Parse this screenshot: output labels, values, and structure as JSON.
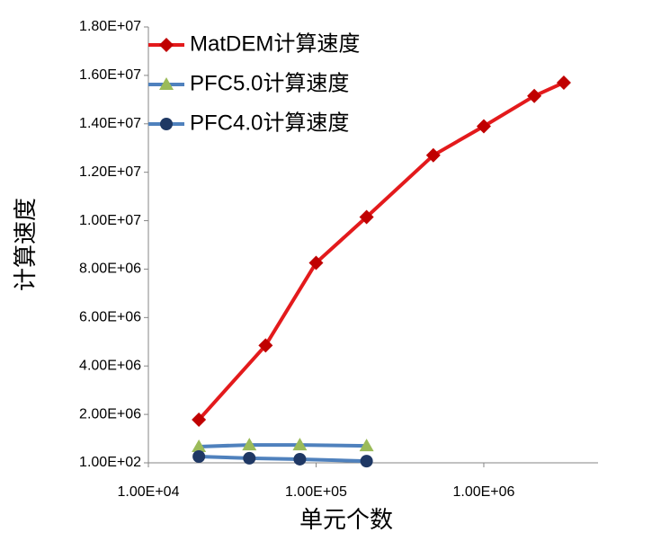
{
  "chart_data": {
    "type": "line",
    "x_label": "单元个数",
    "y_label": "计算速度",
    "x_log": true,
    "xlim": [
      10000,
      4800000
    ],
    "xticks": [
      {
        "value": 10000,
        "label": "1.00E+04"
      },
      {
        "value": 100000,
        "label": "1.00E+05"
      },
      {
        "value": 1000000,
        "label": "1.00E+06"
      }
    ],
    "ylim": [
      100,
      18000000
    ],
    "yticks": [
      {
        "value": 100,
        "label": "1.00E+02"
      },
      {
        "value": 2000000,
        "label": "2.00E+06"
      },
      {
        "value": 4000000,
        "label": "4.00E+06"
      },
      {
        "value": 6000000,
        "label": "6.00E+06"
      },
      {
        "value": 8000000,
        "label": "8.00E+06"
      },
      {
        "value": 10000000,
        "label": "1.00E+07"
      },
      {
        "value": 12000000,
        "label": "1.20E+07"
      },
      {
        "value": 14000000,
        "label": "1.40E+07"
      },
      {
        "value": 16000000,
        "label": "1.60E+07"
      },
      {
        "value": 18000000,
        "label": "1.80E+07"
      }
    ],
    "grid": false,
    "legend": "top-left",
    "series": [
      {
        "name": "MatDEM计算速度",
        "color": "#e31a1c",
        "marker": "diamond",
        "marker_color": "#c00000",
        "x": [
          20000,
          50000,
          100000,
          200000,
          500000,
          1000000,
          2000000,
          3000000
        ],
        "values": [
          1780000,
          4850000,
          8260000,
          10150000,
          12700000,
          13900000,
          15150000,
          15700000
        ]
      },
      {
        "name": "PFC5.0计算速度",
        "color": "#4f81bd",
        "marker": "triangle",
        "marker_color": "#9bbb59",
        "x": [
          20000,
          40000,
          80000,
          200000
        ],
        "values": [
          670000,
          740000,
          740000,
          700000
        ]
      },
      {
        "name": "PFC4.0计算速度",
        "color": "#4f81bd",
        "marker": "circle",
        "marker_color": "#1f3864",
        "x": [
          20000,
          40000,
          80000,
          200000
        ],
        "values": [
          260000,
          190000,
          150000,
          70000
        ]
      }
    ]
  }
}
